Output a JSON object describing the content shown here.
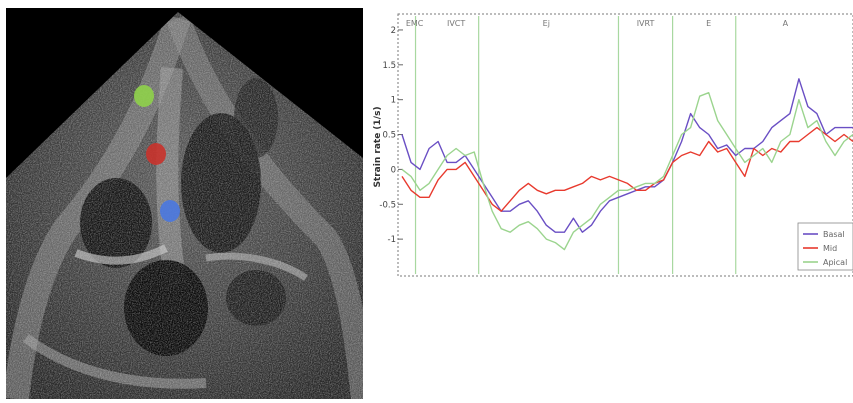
{
  "colors": {
    "basal": "#6a4fc4",
    "mid": "#e83a2e",
    "apical": "#9bd48e",
    "roi_top": "#8fd14a",
    "roi_middle": "#c9322b",
    "roi_bottom": "#4a78e0"
  },
  "echo": {
    "roi_markers": [
      "green",
      "red",
      "blue"
    ]
  },
  "chart_data": {
    "type": "line",
    "title": "",
    "xlabel": "",
    "ylabel": "Strain rate (1/s)",
    "ylim": [
      -1.5,
      2.2
    ],
    "xlim": [
      0,
      100
    ],
    "yticks": [
      "2",
      "1.5",
      "1",
      "0.5",
      "0",
      "-0.5",
      "-1"
    ],
    "ytick_values": [
      2,
      1.5,
      1,
      0.5,
      0,
      -0.5,
      -1
    ],
    "phases": [
      {
        "label": "EMC",
        "x": 2.8
      },
      {
        "label": "IVCT",
        "x": 12
      },
      {
        "label": "Ej",
        "x": 32
      },
      {
        "label": "IVRT",
        "x": 54
      },
      {
        "label": "E",
        "x": 68
      },
      {
        "label": "A",
        "x": 85
      }
    ],
    "phase_lines": [
      3,
      17,
      48,
      60,
      74
    ],
    "legend": [
      "Basal",
      "Mid",
      "Apical"
    ],
    "legend_position": "bottom-right",
    "series": [
      {
        "name": "Basal",
        "x": [
          0,
          2,
          4,
          6,
          8,
          10,
          12,
          14,
          16,
          18,
          20,
          22,
          24,
          26,
          28,
          30,
          32,
          34,
          36,
          38,
          40,
          42,
          44,
          46,
          48,
          50,
          52,
          54,
          56,
          58,
          60,
          62,
          64,
          66,
          68,
          70,
          72,
          74,
          76,
          78,
          80,
          82,
          84,
          86,
          88,
          90,
          92,
          94,
          96,
          98,
          100
        ],
        "y": [
          0.5,
          0.1,
          0.0,
          0.3,
          0.4,
          0.1,
          0.1,
          0.2,
          0.0,
          -0.2,
          -0.4,
          -0.6,
          -0.6,
          -0.5,
          -0.45,
          -0.6,
          -0.8,
          -0.9,
          -0.9,
          -0.7,
          -0.9,
          -0.8,
          -0.6,
          -0.45,
          -0.4,
          -0.35,
          -0.3,
          -0.25,
          -0.25,
          -0.15,
          0.1,
          0.4,
          0.8,
          0.6,
          0.5,
          0.3,
          0.35,
          0.2,
          0.3,
          0.3,
          0.4,
          0.6,
          0.7,
          0.8,
          1.3,
          0.9,
          0.8,
          0.5,
          0.6,
          0.6,
          0.6
        ]
      },
      {
        "name": "Mid",
        "x": [
          0,
          2,
          4,
          6,
          8,
          10,
          12,
          14,
          16,
          18,
          20,
          22,
          24,
          26,
          28,
          30,
          32,
          34,
          36,
          38,
          40,
          42,
          44,
          46,
          48,
          50,
          52,
          54,
          56,
          58,
          60,
          62,
          64,
          66,
          68,
          70,
          72,
          74,
          76,
          78,
          80,
          82,
          84,
          86,
          88,
          90,
          92,
          94,
          96,
          98,
          100
        ],
        "y": [
          -0.1,
          -0.3,
          -0.4,
          -0.4,
          -0.15,
          0.0,
          0.0,
          0.1,
          -0.1,
          -0.3,
          -0.5,
          -0.6,
          -0.45,
          -0.3,
          -0.2,
          -0.3,
          -0.35,
          -0.3,
          -0.3,
          -0.25,
          -0.2,
          -0.1,
          -0.15,
          -0.1,
          -0.15,
          -0.2,
          -0.3,
          -0.3,
          -0.2,
          -0.15,
          0.1,
          0.2,
          0.25,
          0.2,
          0.4,
          0.25,
          0.3,
          0.1,
          -0.1,
          0.3,
          0.2,
          0.3,
          0.25,
          0.4,
          0.4,
          0.5,
          0.6,
          0.5,
          0.4,
          0.5,
          0.4
        ]
      },
      {
        "name": "Apical",
        "x": [
          0,
          2,
          4,
          6,
          8,
          10,
          12,
          14,
          16,
          18,
          20,
          22,
          24,
          26,
          28,
          30,
          32,
          34,
          36,
          38,
          40,
          42,
          44,
          46,
          48,
          50,
          52,
          54,
          56,
          58,
          60,
          62,
          64,
          66,
          68,
          70,
          72,
          74,
          76,
          78,
          80,
          82,
          84,
          86,
          88,
          90,
          92,
          94,
          96,
          98,
          100
        ],
        "y": [
          0.0,
          -0.1,
          -0.3,
          -0.2,
          0.0,
          0.2,
          0.3,
          0.2,
          0.25,
          -0.2,
          -0.6,
          -0.85,
          -0.9,
          -0.8,
          -0.75,
          -0.85,
          -1.0,
          -1.05,
          -1.15,
          -0.9,
          -0.8,
          -0.7,
          -0.5,
          -0.4,
          -0.3,
          -0.3,
          -0.25,
          -0.2,
          -0.2,
          -0.1,
          0.2,
          0.5,
          0.6,
          1.05,
          1.1,
          0.7,
          0.5,
          0.3,
          0.1,
          0.2,
          0.3,
          0.1,
          0.4,
          0.5,
          1.0,
          0.6,
          0.7,
          0.4,
          0.2,
          0.4,
          0.5
        ]
      }
    ]
  }
}
